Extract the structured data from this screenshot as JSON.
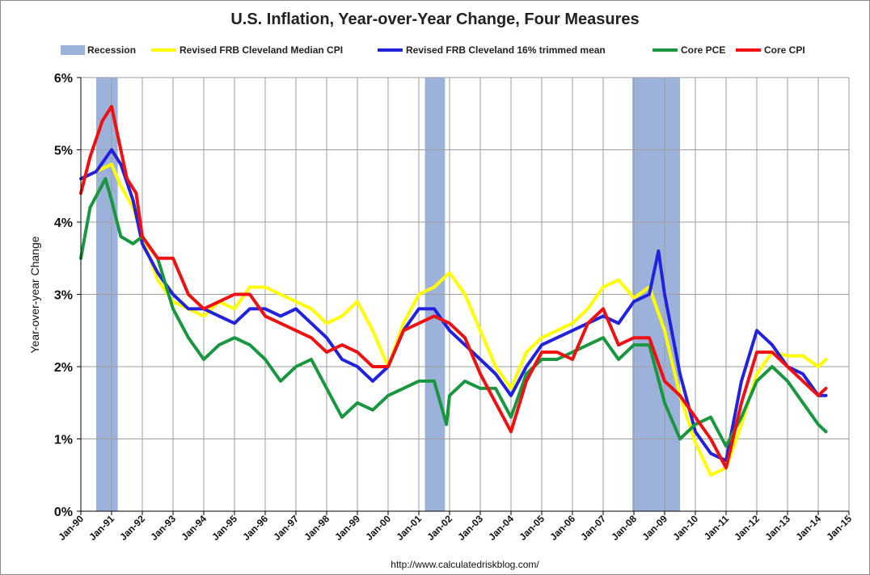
{
  "chart_data": {
    "type": "line",
    "title": "U.S. Inflation, Year-over-Year Change, Four Measures",
    "ylabel": "Year-over-year Change",
    "xlabel": "",
    "source": "http://www.calculatedriskblog.com/",
    "ylim": [
      0,
      6
    ],
    "xlim": [
      1990,
      2015
    ],
    "y_ticks": [
      0,
      1,
      2,
      3,
      4,
      5,
      6
    ],
    "y_tick_labels": [
      "0%",
      "1%",
      "2%",
      "3%",
      "4%",
      "5%",
      "6%"
    ],
    "x_ticks": [
      1990,
      1991,
      1992,
      1993,
      1994,
      1995,
      1996,
      1997,
      1998,
      1999,
      2000,
      2001,
      2002,
      2003,
      2004,
      2005,
      2006,
      2007,
      2008,
      2009,
      2010,
      2011,
      2012,
      2013,
      2014,
      2015
    ],
    "x_tick_labels": [
      "Jan-90",
      "Jan-91",
      "Jan-92",
      "Jan-93",
      "Jan-94",
      "Jan-95",
      "Jan-96",
      "Jan-97",
      "Jan-98",
      "Jan-99",
      "Jan-00",
      "Jan-01",
      "Jan-02",
      "Jan-03",
      "Jan-04",
      "Jan-05",
      "Jan-06",
      "Jan-07",
      "Jan-08",
      "Jan-09",
      "Jan-10",
      "Jan-11",
      "Jan-12",
      "Jan-13",
      "Jan-14",
      "Jan-15"
    ],
    "grid": true,
    "legend_position": "top",
    "recessions": [
      {
        "label": "Recession",
        "start": 1990.5,
        "end": 1991.2
      },
      {
        "start": 2001.2,
        "end": 2001.85
      },
      {
        "start": 2007.95,
        "end": 2009.5
      }
    ],
    "series": [
      {
        "name": "Revised FRB Cleveland Median CPI",
        "color": "#ffff00",
        "x": [
          1990.0,
          1990.5,
          1991.0,
          1991.3,
          1991.7,
          1992.0,
          1992.5,
          1993.0,
          1993.5,
          1994.0,
          1994.5,
          1995.0,
          1995.5,
          1996.0,
          1996.5,
          1997.0,
          1997.5,
          1998.0,
          1998.5,
          1999.0,
          1999.5,
          2000.0,
          2000.5,
          2001.0,
          2001.5,
          2002.0,
          2002.5,
          2003.0,
          2003.5,
          2004.0,
          2004.5,
          2005.0,
          2005.5,
          2006.0,
          2006.5,
          2007.0,
          2007.5,
          2008.0,
          2008.5,
          2009.0,
          2009.5,
          2010.0,
          2010.5,
          2011.0,
          2011.5,
          2012.0,
          2012.5,
          2013.0,
          2013.5,
          2014.0,
          2014.25
        ],
        "values": [
          4.6,
          4.7,
          4.8,
          4.5,
          4.2,
          3.8,
          3.2,
          2.9,
          2.8,
          2.7,
          2.9,
          2.8,
          3.1,
          3.1,
          3.0,
          2.9,
          2.8,
          2.6,
          2.7,
          2.9,
          2.5,
          2.0,
          2.6,
          3.0,
          3.1,
          3.3,
          3.0,
          2.5,
          2.0,
          1.7,
          2.2,
          2.4,
          2.5,
          2.6,
          2.8,
          3.1,
          3.2,
          2.95,
          3.1,
          2.5,
          1.6,
          0.95,
          0.5,
          0.6,
          1.2,
          1.9,
          2.2,
          2.15,
          2.15,
          2.0,
          2.1
        ]
      },
      {
        "name": "Revised FRB Cleveland 16% trimmed mean",
        "color": "#2222dd",
        "x": [
          1990.0,
          1990.5,
          1991.0,
          1991.3,
          1991.7,
          1992.0,
          1992.5,
          1993.0,
          1993.5,
          1994.0,
          1994.5,
          1995.0,
          1995.5,
          1996.0,
          1996.5,
          1997.0,
          1997.5,
          1998.0,
          1998.5,
          1999.0,
          1999.5,
          2000.0,
          2000.5,
          2001.0,
          2001.5,
          2002.0,
          2002.5,
          2003.0,
          2003.5,
          2004.0,
          2004.5,
          2005.0,
          2005.5,
          2006.0,
          2006.5,
          2007.0,
          2007.5,
          2008.0,
          2008.5,
          2008.8,
          2009.0,
          2009.5,
          2010.0,
          2010.5,
          2011.0,
          2011.5,
          2012.0,
          2012.5,
          2013.0,
          2013.5,
          2014.0,
          2014.25
        ],
        "values": [
          4.6,
          4.7,
          5.0,
          4.8,
          4.3,
          3.7,
          3.3,
          3.0,
          2.8,
          2.8,
          2.7,
          2.6,
          2.8,
          2.8,
          2.7,
          2.8,
          2.6,
          2.4,
          2.1,
          2.0,
          1.8,
          2.0,
          2.5,
          2.8,
          2.8,
          2.5,
          2.3,
          2.1,
          1.9,
          1.6,
          2.0,
          2.3,
          2.4,
          2.5,
          2.6,
          2.7,
          2.6,
          2.9,
          3.0,
          3.6,
          3.0,
          1.9,
          1.1,
          0.8,
          0.7,
          1.8,
          2.5,
          2.3,
          2.0,
          1.9,
          1.6,
          1.6
        ]
      },
      {
        "name": "Core PCE",
        "color": "#1a9641",
        "x": [
          1990.0,
          1990.3,
          1990.8,
          1991.0,
          1991.3,
          1991.7,
          1992.0,
          1992.5,
          1993.0,
          1993.5,
          1994.0,
          1994.5,
          1995.0,
          1995.5,
          1996.0,
          1996.5,
          1997.0,
          1997.5,
          1998.0,
          1998.5,
          1999.0,
          1999.5,
          2000.0,
          2000.5,
          2001.0,
          2001.5,
          2001.9,
          2002.0,
          2002.5,
          2003.0,
          2003.5,
          2004.0,
          2004.5,
          2005.0,
          2005.5,
          2006.0,
          2006.5,
          2007.0,
          2007.5,
          2008.0,
          2008.5,
          2009.0,
          2009.5,
          2010.0,
          2010.5,
          2011.0,
          2011.5,
          2012.0,
          2012.5,
          2013.0,
          2013.5,
          2014.0,
          2014.25
        ],
        "values": [
          3.5,
          4.2,
          4.6,
          4.3,
          3.8,
          3.7,
          3.8,
          3.5,
          2.8,
          2.4,
          2.1,
          2.3,
          2.4,
          2.3,
          2.1,
          1.8,
          2.0,
          2.1,
          1.7,
          1.3,
          1.5,
          1.4,
          1.6,
          1.7,
          1.8,
          1.8,
          1.2,
          1.6,
          1.8,
          1.7,
          1.7,
          1.3,
          1.9,
          2.1,
          2.1,
          2.2,
          2.3,
          2.4,
          2.1,
          2.3,
          2.3,
          1.5,
          1.0,
          1.2,
          1.3,
          0.9,
          1.3,
          1.8,
          2.0,
          1.8,
          1.5,
          1.2,
          1.1
        ]
      },
      {
        "name": "Core CPI",
        "color": "#ee1111",
        "x": [
          1990.0,
          1990.3,
          1990.7,
          1991.0,
          1991.2,
          1991.5,
          1991.8,
          1992.0,
          1992.5,
          1993.0,
          1993.5,
          1994.0,
          1994.5,
          1995.0,
          1995.5,
          1996.0,
          1996.5,
          1997.0,
          1997.5,
          1998.0,
          1998.5,
          1999.0,
          1999.5,
          2000.0,
          2000.5,
          2001.0,
          2001.5,
          2002.0,
          2002.5,
          2003.0,
          2003.5,
          2004.0,
          2004.5,
          2005.0,
          2005.5,
          2006.0,
          2006.5,
          2007.0,
          2007.5,
          2008.0,
          2008.5,
          2009.0,
          2009.5,
          2010.0,
          2010.5,
          2011.0,
          2011.5,
          2012.0,
          2012.5,
          2013.0,
          2013.5,
          2014.0,
          2014.25
        ],
        "values": [
          4.4,
          4.9,
          5.4,
          5.6,
          5.2,
          4.6,
          4.4,
          3.8,
          3.5,
          3.5,
          3.0,
          2.8,
          2.9,
          3.0,
          3.0,
          2.7,
          2.6,
          2.5,
          2.4,
          2.2,
          2.3,
          2.2,
          2.0,
          2.0,
          2.5,
          2.6,
          2.7,
          2.6,
          2.4,
          1.9,
          1.5,
          1.1,
          1.8,
          2.2,
          2.2,
          2.1,
          2.6,
          2.8,
          2.3,
          2.4,
          2.4,
          1.8,
          1.6,
          1.3,
          1.0,
          0.6,
          1.5,
          2.2,
          2.2,
          2.0,
          1.8,
          1.6,
          1.7
        ]
      }
    ]
  },
  "colors": {
    "recession": "#9db2da",
    "grid": "#9e9e9e",
    "axis": "#000000"
  }
}
